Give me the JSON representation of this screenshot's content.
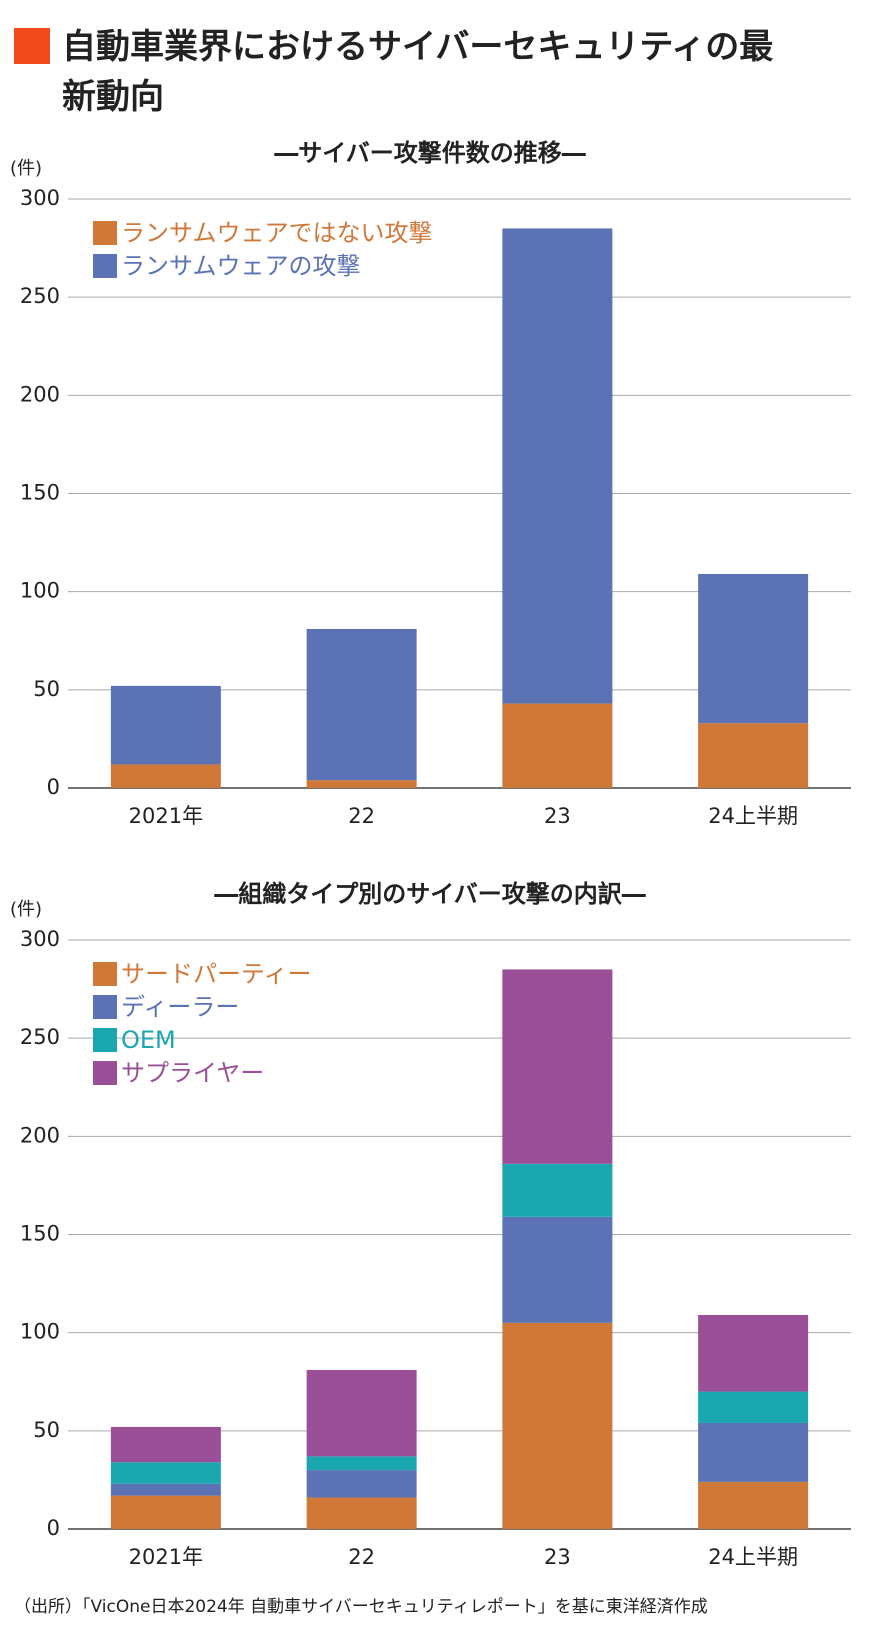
{
  "header": {
    "title": "自動車業界におけるサイバーセキュリティの最新動向"
  },
  "chart_data": [
    {
      "type": "bar",
      "stacked": true,
      "title": "―サイバー攻撃件数の推移―",
      "y_label": "(件)",
      "categories": [
        "2021年",
        "22",
        "23",
        "24上半期"
      ],
      "series": [
        {
          "name": "ランサムウェアではない攻撃",
          "color": "#d07838",
          "values": [
            12,
            4,
            43,
            33
          ]
        },
        {
          "name": "ランサムウェアの攻撃",
          "color": "#5b73b5",
          "values": [
            40,
            77,
            242,
            76
          ]
        }
      ],
      "ylim": [
        0,
        300
      ],
      "yticks": [
        0,
        50,
        100,
        150,
        200,
        250,
        300
      ],
      "grid": true,
      "legend": "top-left"
    },
    {
      "type": "bar",
      "stacked": true,
      "title": "―組織タイプ別のサイバー攻撃の内訳―",
      "y_label": "(件)",
      "categories": [
        "2021年",
        "22",
        "23",
        "24上半期"
      ],
      "series": [
        {
          "name": "サードパーティー",
          "color": "#d07838",
          "values": [
            17,
            16,
            105,
            24
          ]
        },
        {
          "name": "ディーラー",
          "color": "#5b73b5",
          "values": [
            6,
            14,
            54,
            30
          ]
        },
        {
          "name": "OEM",
          "color": "#1aa7b0",
          "values": [
            11,
            7,
            27,
            16
          ]
        },
        {
          "name": "サプライヤー",
          "color": "#9b4f96",
          "values": [
            18,
            44,
            99,
            39
          ]
        }
      ],
      "ylim": [
        0,
        300
      ],
      "yticks": [
        0,
        50,
        100,
        150,
        200,
        250,
        300
      ],
      "grid": true,
      "legend": "top-left"
    }
  ],
  "source": "（出所）「VicOne日本2024年 自動車サイバーセキュリティレポート」を基に東洋経済作成"
}
